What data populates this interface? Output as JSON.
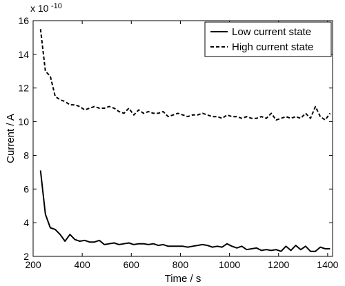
{
  "chart_data": {
    "type": "line",
    "xlabel": "Time / s",
    "ylabel": "Current / A",
    "y_scale_multiplier": "x 10",
    "y_scale_exponent": "-10",
    "xlim": [
      200,
      1420
    ],
    "ylim": [
      2,
      16
    ],
    "xticks": [
      200,
      400,
      600,
      800,
      1000,
      1200,
      1400
    ],
    "yticks": [
      2,
      4,
      6,
      8,
      10,
      12,
      14,
      16
    ],
    "grid": false,
    "legend_position": "top-right",
    "series": [
      {
        "name": "Low current state",
        "style": "solid",
        "color": "#000000",
        "x": [
          230,
          250,
          270,
          290,
          310,
          330,
          350,
          370,
          390,
          410,
          430,
          450,
          470,
          490,
          510,
          530,
          550,
          570,
          590,
          610,
          630,
          650,
          670,
          690,
          710,
          730,
          750,
          770,
          790,
          810,
          830,
          850,
          870,
          890,
          910,
          930,
          950,
          970,
          990,
          1010,
          1030,
          1050,
          1070,
          1090,
          1110,
          1130,
          1150,
          1170,
          1190,
          1210,
          1230,
          1250,
          1270,
          1290,
          1310,
          1330,
          1350,
          1370,
          1390,
          1410
        ],
        "y": [
          7.1,
          4.5,
          3.7,
          3.6,
          3.3,
          2.9,
          3.3,
          3.0,
          2.9,
          2.95,
          2.85,
          2.85,
          2.95,
          2.7,
          2.75,
          2.8,
          2.7,
          2.75,
          2.8,
          2.7,
          2.75,
          2.75,
          2.7,
          2.75,
          2.65,
          2.7,
          2.6,
          2.6,
          2.6,
          2.6,
          2.55,
          2.6,
          2.65,
          2.7,
          2.65,
          2.55,
          2.6,
          2.55,
          2.75,
          2.6,
          2.5,
          2.6,
          2.4,
          2.45,
          2.5,
          2.35,
          2.4,
          2.35,
          2.4,
          2.3,
          2.6,
          2.35,
          2.65,
          2.4,
          2.6,
          2.3,
          2.3,
          2.55,
          2.45,
          2.45
        ]
      },
      {
        "name": "High current state",
        "style": "dashed",
        "color": "#000000",
        "x": [
          230,
          250,
          270,
          290,
          310,
          330,
          350,
          370,
          390,
          410,
          430,
          450,
          470,
          490,
          510,
          530,
          550,
          570,
          590,
          610,
          630,
          650,
          670,
          690,
          710,
          730,
          750,
          770,
          790,
          810,
          830,
          850,
          870,
          890,
          910,
          930,
          950,
          970,
          990,
          1010,
          1030,
          1050,
          1070,
          1090,
          1110,
          1130,
          1150,
          1170,
          1190,
          1210,
          1230,
          1250,
          1270,
          1290,
          1310,
          1330,
          1350,
          1370,
          1390,
          1410
        ],
        "y": [
          15.5,
          13.0,
          12.7,
          11.5,
          11.3,
          11.2,
          11.0,
          11.0,
          10.9,
          10.7,
          10.8,
          10.9,
          10.8,
          10.8,
          10.9,
          10.8,
          10.6,
          10.5,
          10.8,
          10.4,
          10.7,
          10.5,
          10.6,
          10.5,
          10.5,
          10.6,
          10.3,
          10.4,
          10.5,
          10.4,
          10.3,
          10.4,
          10.4,
          10.5,
          10.4,
          10.3,
          10.3,
          10.2,
          10.4,
          10.3,
          10.3,
          10.2,
          10.3,
          10.2,
          10.2,
          10.3,
          10.2,
          10.5,
          10.1,
          10.2,
          10.3,
          10.2,
          10.3,
          10.2,
          10.5,
          10.2,
          10.9,
          10.3,
          10.1,
          10.5
        ]
      }
    ]
  }
}
